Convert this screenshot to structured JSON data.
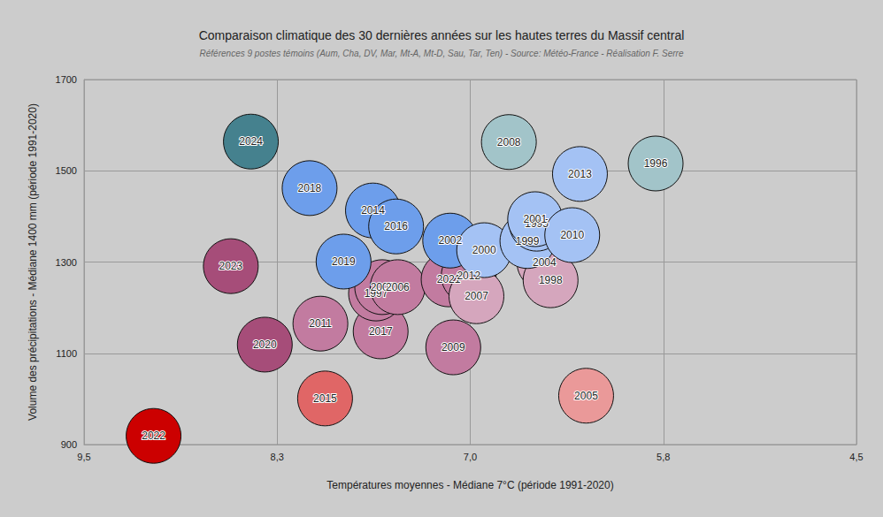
{
  "chart_data": {
    "type": "scatter",
    "title": "Comparaison climatique des 30 dernières années sur les hautes terres du Massif central",
    "subtitle": "Références 9 postes témoins (Aum, Cha, DV, Mar, Mt-A, Mt-D, Sau, Tar, Ten) - Source: Météo-France - Réalisation F. Serre",
    "x_label": "Températures moyennes - Médiane 7°C (période 1991-2020)",
    "y_label": "Volume des précipitations - Médiane 1400 mm (période 1991-2020)",
    "point_labels": [
      "2022",
      "2015",
      "2005",
      "2023",
      "2020",
      "2011",
      "2017",
      "1997",
      "2003",
      "2006",
      "2021",
      "2012",
      "2009",
      "2007",
      "2004",
      "1998",
      "2024",
      "2008",
      "1996",
      "2018",
      "2014",
      "2016",
      "2019",
      "2002",
      "2000",
      "1999",
      "1995",
      "2001",
      "2010",
      "2013"
    ],
    "x": [
      9.05,
      7.94,
      6.25,
      8.55,
      8.33,
      7.97,
      7.58,
      7.61,
      7.57,
      7.47,
      7.14,
      7.01,
      7.11,
      6.96,
      6.52,
      6.48,
      8.42,
      6.75,
      5.8,
      8.04,
      7.63,
      7.48,
      7.82,
      7.13,
      6.91,
      6.63,
      6.57,
      6.58,
      6.34,
      6.29
    ],
    "values": [
      919,
      1001,
      1007,
      1291,
      1119,
      1165,
      1148,
      1231,
      1245,
      1245,
      1262,
      1270,
      1113,
      1225,
      1299,
      1260,
      1564,
      1563,
      1516,
      1462,
      1413,
      1378,
      1301,
      1347,
      1326,
      1346,
      1384,
      1394,
      1359,
      1493
    ],
    "colors": [
      "#cc0000",
      "#e06666",
      "#ea9999",
      "#a64d79",
      "#a64d79",
      "#c27ba0",
      "#c27ba0",
      "#c27ba0",
      "#c27ba0",
      "#c27ba0",
      "#c27ba0",
      "#c27ba0",
      "#c27ba0",
      "#d5a6bd",
      "#d5a6bd",
      "#d5a6bd",
      "#45818e",
      "#a2c4c9",
      "#a2c4c9",
      "#6d9eeb",
      "#6d9eeb",
      "#6d9eeb",
      "#6d9eeb",
      "#6d9eeb",
      "#a4c2f4",
      "#a4c2f4",
      "#a4c2f4",
      "#a4c2f4",
      "#a4c2f4",
      "#a4c2f4"
    ],
    "xlim": [
      9.5,
      4.5
    ],
    "xticks": [
      {
        "value": 9.5,
        "label": "9,5"
      },
      {
        "value": 8.25,
        "label": "8,3"
      },
      {
        "value": 7.0,
        "label": "7,0"
      },
      {
        "value": 5.75,
        "label": "5,8"
      },
      {
        "value": 4.5,
        "label": "4,5"
      }
    ],
    "ylim": [
      900,
      1700
    ],
    "yticks": [
      900,
      1100,
      1300,
      1500,
      1700
    ],
    "grid": true
  }
}
